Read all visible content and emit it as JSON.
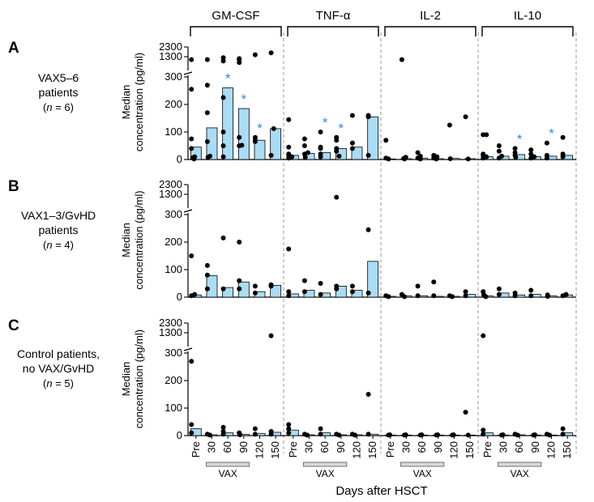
{
  "figure": {
    "x_axis_title": "Days after HSCT",
    "y_axis_title": "Median concentration (pg/ml)",
    "vax_label": "VAX",
    "categories": [
      "Pre",
      "30",
      "60",
      "90",
      "120",
      "150"
    ],
    "y_ticks_lower": [
      0,
      100,
      200,
      300
    ],
    "y_ticks_upper": [
      1300,
      2300
    ],
    "cytokines": [
      "GM-CSF",
      "TNF-α",
      "IL-2",
      "IL-10"
    ]
  },
  "colors": {
    "bar_fill": "#a9dcf5",
    "dot": "#000000",
    "star": "#3f88d6",
    "vax_box": "#d9d9d9",
    "dash": "#999999"
  },
  "panels": [
    {
      "letter": "A",
      "label_line1": "VAX5–6",
      "label_line2": "patients",
      "n_prefix": "n",
      "n_value": " = 6"
    },
    {
      "letter": "B",
      "label_line1": "VAX1–3/GvHD",
      "label_line2": "patients",
      "n_prefix": "n",
      "n_value": " = 4"
    },
    {
      "letter": "C",
      "label_line1": "Control patients,",
      "label_line2": "no VAX/GvHD",
      "n_prefix": "n",
      "n_value": " = 5"
    }
  ],
  "chart_data": {
    "type": "bar",
    "title": "",
    "xlabel": "Days after HSCT",
    "ylabel": "Median concentration (pg/ml)",
    "ylim": [
      0,
      2300
    ],
    "categories": [
      "Pre",
      "30",
      "60",
      "90",
      "120",
      "150"
    ],
    "series": [
      {
        "panel": "A",
        "cytokine": "GM-CSF",
        "bars": [
          45,
          115,
          260,
          185,
          70,
          112
        ],
        "points": [
          [
            0,
            2
          ],
          [
            0,
            6
          ],
          [
            0,
            10
          ],
          [
            0,
            40
          ],
          [
            0,
            75
          ],
          [
            0,
            255
          ],
          [
            0,
            1000
          ],
          [
            1,
            8
          ],
          [
            1,
            12
          ],
          [
            1,
            65
          ],
          [
            1,
            170
          ],
          [
            1,
            270
          ],
          [
            1,
            1000
          ],
          [
            2,
            10
          ],
          [
            2,
            50
          ],
          [
            2,
            100
          ],
          [
            2,
            225
          ],
          [
            2,
            850
          ],
          [
            2,
            1200
          ],
          [
            3,
            50
          ],
          [
            3,
            52
          ],
          [
            3,
            80
          ],
          [
            3,
            1000
          ],
          [
            3,
            1100
          ],
          [
            3,
            700
          ],
          [
            4,
            65
          ],
          [
            4,
            70
          ],
          [
            4,
            80
          ],
          [
            4,
            1500
          ],
          [
            5,
            15
          ],
          [
            5,
            112
          ],
          [
            5,
            1700
          ]
        ],
        "stars": [
          2,
          3,
          4
        ]
      },
      {
        "panel": "A",
        "cytokine": "TNF-α",
        "bars": [
          15,
          22,
          25,
          40,
          45,
          155
        ],
        "points": [
          [
            0,
            5
          ],
          [
            0,
            10
          ],
          [
            0,
            15
          ],
          [
            0,
            20
          ],
          [
            0,
            45
          ],
          [
            0,
            145
          ],
          [
            1,
            8
          ],
          [
            1,
            20
          ],
          [
            1,
            25
          ],
          [
            1,
            50
          ],
          [
            1,
            75
          ],
          [
            2,
            10
          ],
          [
            2,
            20
          ],
          [
            2,
            40
          ],
          [
            2,
            45
          ],
          [
            2,
            100
          ],
          [
            3,
            12
          ],
          [
            3,
            30
          ],
          [
            3,
            40
          ],
          [
            3,
            80
          ],
          [
            3,
            70
          ],
          [
            4,
            40
          ],
          [
            4,
            60
          ],
          [
            4,
            160
          ],
          [
            5,
            15
          ],
          [
            5,
            155
          ],
          [
            5,
            160
          ]
        ],
        "stars": [
          2,
          3
        ]
      },
      {
        "panel": "A",
        "cytokine": "IL-2",
        "bars": [
          2,
          3,
          5,
          3,
          4,
          3
        ],
        "points": [
          [
            0,
            2
          ],
          [
            0,
            5
          ],
          [
            0,
            70
          ],
          [
            1,
            2
          ],
          [
            1,
            4
          ],
          [
            1,
            8
          ],
          [
            1,
            1000
          ],
          [
            2,
            2
          ],
          [
            2,
            5
          ],
          [
            2,
            12
          ],
          [
            2,
            25
          ],
          [
            3,
            2
          ],
          [
            3,
            5
          ],
          [
            3,
            10
          ],
          [
            3,
            15
          ],
          [
            4,
            3
          ],
          [
            4,
            125
          ],
          [
            5,
            2
          ],
          [
            5,
            155
          ]
        ],
        "stars": []
      },
      {
        "panel": "A",
        "cytokine": "IL-10",
        "bars": [
          10,
          12,
          18,
          10,
          12,
          15
        ],
        "points": [
          [
            0,
            5
          ],
          [
            0,
            10
          ],
          [
            0,
            15
          ],
          [
            0,
            20
          ],
          [
            0,
            90
          ],
          [
            0,
            90
          ],
          [
            1,
            5
          ],
          [
            1,
            12
          ],
          [
            1,
            30
          ],
          [
            1,
            50
          ],
          [
            2,
            8
          ],
          [
            2,
            15
          ],
          [
            2,
            25
          ],
          [
            2,
            40
          ],
          [
            3,
            5
          ],
          [
            3,
            10
          ],
          [
            3,
            20
          ],
          [
            3,
            35
          ],
          [
            4,
            5
          ],
          [
            4,
            15
          ],
          [
            4,
            60
          ],
          [
            5,
            10
          ],
          [
            5,
            20
          ],
          [
            5,
            80
          ]
        ],
        "stars": [
          2,
          4
        ]
      },
      {
        "panel": "B",
        "cytokine": "GM-CSF",
        "bars": [
          8,
          78,
          35,
          55,
          20,
          43
        ],
        "points": [
          [
            0,
            5
          ],
          [
            0,
            10
          ],
          [
            0,
            150
          ],
          [
            1,
            30
          ],
          [
            1,
            80
          ],
          [
            1,
            115
          ],
          [
            2,
            30
          ],
          [
            2,
            215
          ],
          [
            3,
            30
          ],
          [
            3,
            60
          ],
          [
            3,
            200
          ],
          [
            4,
            15
          ],
          [
            4,
            40
          ],
          [
            5,
            40
          ],
          [
            5,
            45
          ]
        ],
        "stars": []
      },
      {
        "panel": "B",
        "cytokine": "TNF-α",
        "bars": [
          12,
          25,
          15,
          40,
          25,
          130
        ],
        "points": [
          [
            0,
            5
          ],
          [
            0,
            20
          ],
          [
            0,
            175
          ],
          [
            1,
            20
          ],
          [
            1,
            60
          ],
          [
            2,
            10
          ],
          [
            2,
            50
          ],
          [
            3,
            30
          ],
          [
            3,
            40
          ],
          [
            3,
            1000
          ],
          [
            4,
            20
          ],
          [
            4,
            40
          ],
          [
            5,
            15
          ],
          [
            5,
            245
          ]
        ],
        "stars": []
      },
      {
        "panel": "B",
        "cytokine": "IL-2",
        "bars": [
          3,
          5,
          5,
          3,
          3,
          10
        ],
        "points": [
          [
            0,
            2
          ],
          [
            0,
            5
          ],
          [
            1,
            2
          ],
          [
            1,
            10
          ],
          [
            2,
            5
          ],
          [
            2,
            40
          ],
          [
            3,
            5
          ],
          [
            3,
            55
          ],
          [
            4,
            2
          ],
          [
            4,
            5
          ],
          [
            5,
            5
          ],
          [
            5,
            20
          ]
        ],
        "stars": []
      },
      {
        "panel": "B",
        "cytokine": "IL-10",
        "bars": [
          5,
          15,
          8,
          10,
          5,
          8
        ],
        "points": [
          [
            0,
            2
          ],
          [
            0,
            8
          ],
          [
            0,
            20
          ],
          [
            1,
            10
          ],
          [
            1,
            30
          ],
          [
            2,
            5
          ],
          [
            2,
            15
          ],
          [
            3,
            5
          ],
          [
            3,
            25
          ],
          [
            4,
            3
          ],
          [
            4,
            8
          ],
          [
            5,
            5
          ],
          [
            5,
            10
          ]
        ],
        "stars": []
      },
      {
        "panel": "C",
        "cytokine": "GM-CSF",
        "bars": [
          25,
          3,
          10,
          5,
          8,
          12
        ],
        "points": [
          [
            0,
            10
          ],
          [
            0,
            40
          ],
          [
            0,
            270
          ],
          [
            1,
            2
          ],
          [
            1,
            5
          ],
          [
            2,
            5
          ],
          [
            2,
            15
          ],
          [
            2,
            30
          ],
          [
            3,
            3
          ],
          [
            3,
            10
          ],
          [
            4,
            5
          ],
          [
            4,
            25
          ],
          [
            5,
            5
          ],
          [
            5,
            15
          ],
          [
            5,
            1000
          ]
        ],
        "stars": []
      },
      {
        "panel": "C",
        "cytokine": "TNF-α",
        "bars": [
          20,
          3,
          10,
          3,
          3,
          5
        ],
        "points": [
          [
            0,
            10
          ],
          [
            0,
            40
          ],
          [
            0,
            25
          ],
          [
            1,
            2
          ],
          [
            1,
            5
          ],
          [
            2,
            5
          ],
          [
            2,
            25
          ],
          [
            3,
            2
          ],
          [
            3,
            5
          ],
          [
            4,
            2
          ],
          [
            4,
            5
          ],
          [
            5,
            5
          ],
          [
            5,
            150
          ]
        ],
        "stars": []
      },
      {
        "panel": "C",
        "cytokine": "IL-2",
        "bars": [
          2,
          2,
          2,
          2,
          2,
          2
        ],
        "points": [
          [
            0,
            2
          ],
          [
            0,
            3
          ],
          [
            1,
            2
          ],
          [
            1,
            3
          ],
          [
            2,
            2
          ],
          [
            2,
            3
          ],
          [
            3,
            2
          ],
          [
            3,
            3
          ],
          [
            4,
            2
          ],
          [
            4,
            3
          ],
          [
            5,
            2
          ],
          [
            5,
            85
          ]
        ],
        "stars": []
      },
      {
        "panel": "C",
        "cytokine": "IL-10",
        "bars": [
          10,
          2,
          3,
          2,
          2,
          10
        ],
        "points": [
          [
            0,
            5
          ],
          [
            0,
            20
          ],
          [
            0,
            1000
          ],
          [
            1,
            2
          ],
          [
            1,
            3
          ],
          [
            2,
            2
          ],
          [
            2,
            5
          ],
          [
            3,
            2
          ],
          [
            3,
            3
          ],
          [
            4,
            2
          ],
          [
            4,
            5
          ],
          [
            5,
            5
          ],
          [
            5,
            25
          ]
        ],
        "stars": []
      }
    ]
  }
}
